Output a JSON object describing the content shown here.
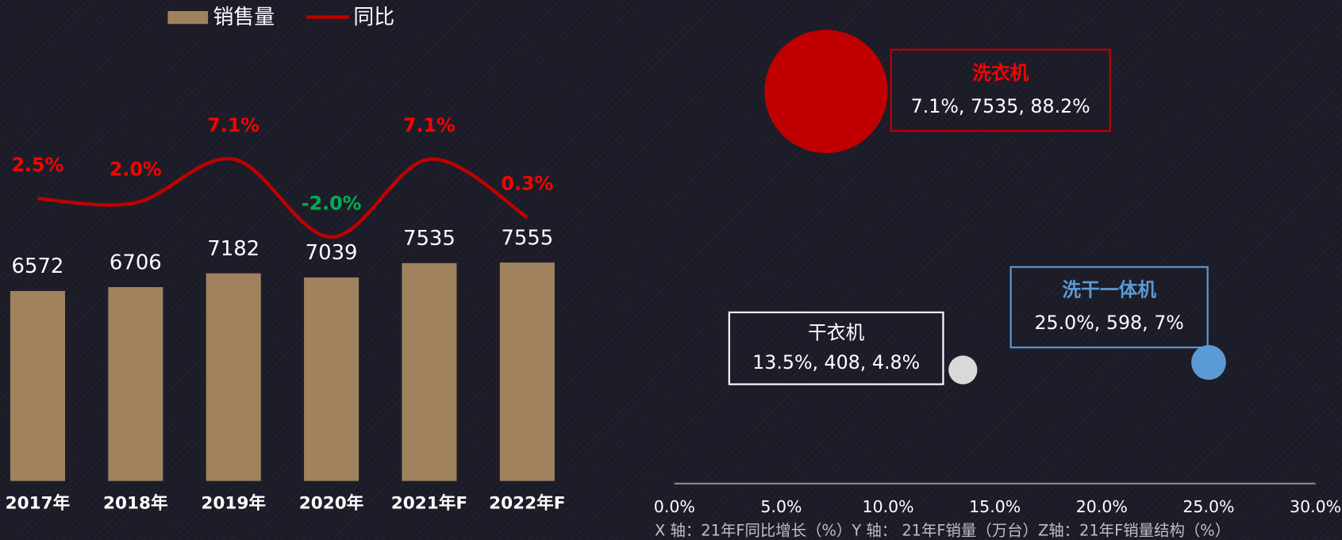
{
  "chart_data": [
    {
      "type": "bar",
      "categories": [
        "2017年",
        "2018年",
        "2019年",
        "2020年",
        "2021年F",
        "2022年F"
      ],
      "series": [
        {
          "name": "销售量",
          "color": "#a0825f",
          "values": [
            6572,
            6706,
            7182,
            7039,
            7535,
            7555
          ]
        },
        {
          "name": "同比",
          "color": "#c00000",
          "type": "line",
          "axis": "y2",
          "values": [
            2.5,
            2.0,
            7.1,
            -2.0,
            7.1,
            0.3
          ],
          "value_labels": [
            "2.5%",
            "2.0%",
            "7.1%",
            "-2.0%",
            "7.1%",
            "0.3%"
          ]
        }
      ],
      "ylim": [
        0,
        9000
      ],
      "y2lim": [
        -10,
        10
      ],
      "legend": "top"
    },
    {
      "type": "bubble",
      "xlim": [
        0,
        30
      ],
      "xticks": [
        {
          "value": 0,
          "label": "0.0%"
        },
        {
          "value": 5,
          "label": "5.0%"
        },
        {
          "value": 10,
          "label": "10.0%"
        },
        {
          "value": 15,
          "label": "15.0%"
        },
        {
          "value": 20,
          "label": "20.0%"
        },
        {
          "value": 25,
          "label": "25.0%"
        },
        {
          "value": 30,
          "label": "30.0%"
        }
      ],
      "ylim": [
        -2500,
        9000
      ],
      "points": [
        {
          "name": "洗衣机",
          "color": "#c00000",
          "x": 7.1,
          "y": 7535,
          "size": 88.2,
          "label": "7.1%, 7535, 88.2%"
        },
        {
          "name": "干衣机",
          "color": "#d9d9d9",
          "x": 13.5,
          "y": 408,
          "size": 4.8,
          "label": "13.5%, 408, 4.8%"
        },
        {
          "name": "洗干一体机",
          "color": "#5b9bd5",
          "x": 25.0,
          "y": 598,
          "size": 7,
          "label": "25.0%, 598, 7%"
        }
      ],
      "note": "X 轴：21年F同比增长（%）Y 轴： 21年F销量（万台）Z轴：21年F销量结构（%）"
    }
  ]
}
